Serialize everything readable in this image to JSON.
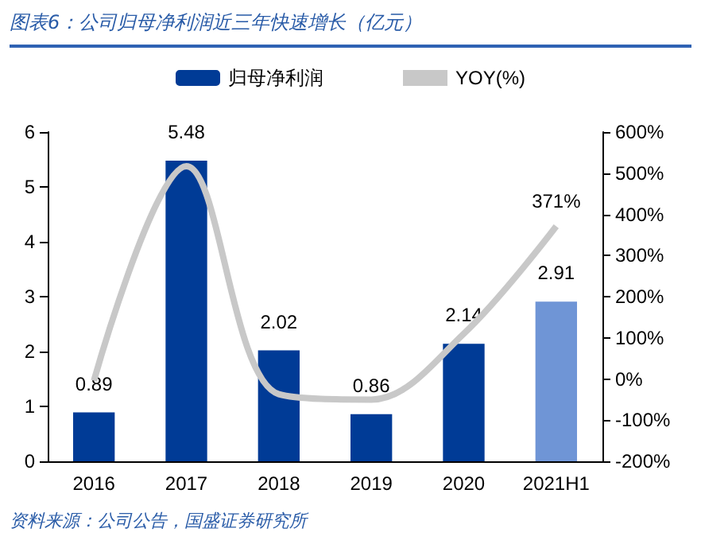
{
  "chart_data": {
    "type": "bar",
    "title": "图表6：公司归母净利润近三年快速增长（亿元）",
    "categories": [
      "2016",
      "2017",
      "2018",
      "2019",
      "2020",
      "2021H1"
    ],
    "series": [
      {
        "name": "归母净利润",
        "color": "#003b96",
        "colors": [
          "#003b96",
          "#003b96",
          "#003b96",
          "#003b96",
          "#003b96",
          "#6f95d6"
        ],
        "values": [
          0.89,
          5.48,
          2.02,
          0.86,
          2.14,
          2.91
        ]
      },
      {
        "name": "YOY(%)",
        "type": "line",
        "axis": "y2",
        "color": "#c8c8c8",
        "values": [
          -4,
          517,
          -37,
          -50,
          110,
          371
        ],
        "value_labels": [
          null,
          null,
          null,
          null,
          null,
          "371%"
        ]
      }
    ],
    "data_labels": true,
    "ylim": [
      0,
      6
    ],
    "yticks": [
      0,
      1,
      2,
      3,
      4,
      5,
      6
    ],
    "y2lim": [
      -200,
      600
    ],
    "y2ticks": [
      {
        "value": -200,
        "label": "-200%"
      },
      {
        "value": -100,
        "label": "-100%"
      },
      {
        "value": 0,
        "label": "0%"
      },
      {
        "value": 100,
        "label": "100%"
      },
      {
        "value": 200,
        "label": "200%"
      },
      {
        "value": 300,
        "label": "300%"
      },
      {
        "value": 400,
        "label": "400%"
      },
      {
        "value": 500,
        "label": "500%"
      },
      {
        "value": 600,
        "label": "600%"
      }
    ],
    "grid": false,
    "legend": "top",
    "marker": "none",
    "annotations": [
      "资料来源：公司公告，国盛证券研究所"
    ]
  }
}
